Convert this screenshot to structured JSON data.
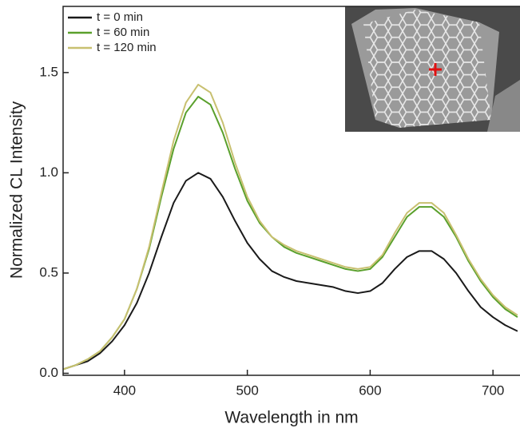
{
  "chart_data": {
    "type": "line",
    "xlabel": "Wavelength in nm",
    "ylabel": "Normalized CL Intensity",
    "x": [
      350,
      360,
      370,
      380,
      390,
      400,
      410,
      420,
      430,
      440,
      450,
      460,
      470,
      480,
      490,
      500,
      510,
      520,
      530,
      540,
      550,
      560,
      570,
      580,
      590,
      600,
      610,
      620,
      630,
      640,
      650,
      660,
      670,
      680,
      690,
      700,
      710,
      720
    ],
    "series": [
      {
        "name": "t = 0 min",
        "color": "#1a1a1a",
        "values": [
          0.02,
          0.04,
          0.06,
          0.1,
          0.16,
          0.24,
          0.35,
          0.5,
          0.68,
          0.85,
          0.96,
          1.0,
          0.97,
          0.88,
          0.76,
          0.65,
          0.57,
          0.51,
          0.48,
          0.46,
          0.45,
          0.44,
          0.43,
          0.41,
          0.4,
          0.41,
          0.45,
          0.52,
          0.58,
          0.61,
          0.61,
          0.57,
          0.5,
          0.41,
          0.33,
          0.28,
          0.24,
          0.21
        ]
      },
      {
        "name": "t = 60 min",
        "color": "#5aa02c",
        "values": [
          0.02,
          0.04,
          0.07,
          0.11,
          0.18,
          0.27,
          0.42,
          0.62,
          0.88,
          1.12,
          1.3,
          1.38,
          1.34,
          1.2,
          1.02,
          0.86,
          0.75,
          0.68,
          0.63,
          0.6,
          0.58,
          0.56,
          0.54,
          0.52,
          0.51,
          0.52,
          0.58,
          0.68,
          0.78,
          0.83,
          0.83,
          0.78,
          0.68,
          0.56,
          0.46,
          0.38,
          0.32,
          0.28
        ]
      },
      {
        "name": "t = 120 min",
        "color": "#c8c070",
        "values": [
          0.02,
          0.04,
          0.07,
          0.11,
          0.18,
          0.27,
          0.42,
          0.63,
          0.9,
          1.16,
          1.35,
          1.44,
          1.4,
          1.25,
          1.05,
          0.88,
          0.76,
          0.68,
          0.64,
          0.61,
          0.59,
          0.57,
          0.55,
          0.53,
          0.52,
          0.53,
          0.59,
          0.7,
          0.8,
          0.85,
          0.85,
          0.8,
          0.69,
          0.57,
          0.47,
          0.39,
          0.33,
          0.29
        ]
      }
    ],
    "xlim": [
      350,
      722
    ],
    "ylim": [
      -0.01,
      1.83
    ],
    "xticks": [
      400,
      500,
      600,
      700
    ],
    "yticks": [
      {
        "value": 0,
        "label": "0.0"
      },
      {
        "value": 0.5,
        "label": "0.5"
      },
      {
        "value": 1,
        "label": "1.0"
      },
      {
        "value": 1.5,
        "label": "1.5"
      }
    ],
    "legend": "upper left"
  }
}
